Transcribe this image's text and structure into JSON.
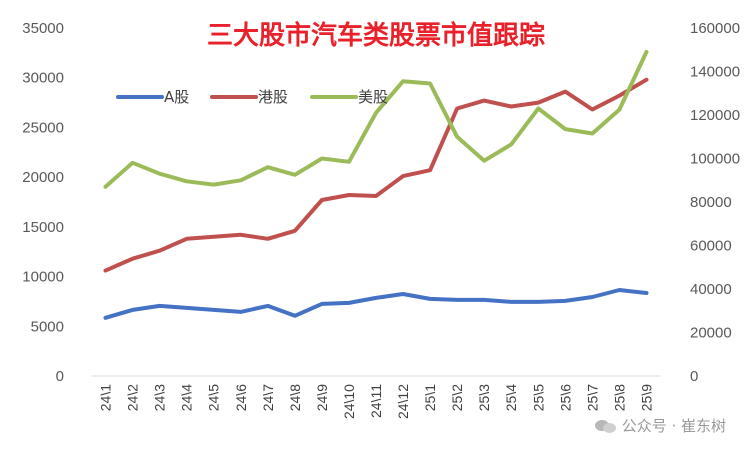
{
  "chart_data": {
    "type": "line",
    "title": "三大股市汽车类股票市值跟踪",
    "categories": [
      "24\\1",
      "24\\2",
      "24\\3",
      "24\\4",
      "24\\5",
      "24\\6",
      "24\\7",
      "24\\8",
      "24\\9",
      "24\\10",
      "24\\11",
      "24\\12",
      "25\\1",
      "25\\2",
      "25\\3",
      "25\\4",
      "25\\5",
      "25\\6",
      "25\\7",
      "25\\8",
      "25\\9"
    ],
    "y_left": {
      "min": 0,
      "max": 35000,
      "step": 5000,
      "ticks": [
        "0",
        "5000",
        "10000",
        "15000",
        "20000",
        "25000",
        "30000",
        "35000"
      ]
    },
    "y_right": {
      "min": 0,
      "max": 160000,
      "step": 20000,
      "ticks": [
        "0",
        "20000",
        "40000",
        "60000",
        "80000",
        "100000",
        "120000",
        "140000",
        "160000"
      ]
    },
    "series": [
      {
        "name": "A股",
        "color": "#4472c4",
        "axis": "left",
        "values": [
          5850,
          6650,
          7050,
          6850,
          6650,
          6450,
          7050,
          6050,
          7250,
          7350,
          7850,
          8250,
          7750,
          7650,
          7650,
          7450,
          7450,
          7550,
          7950,
          8650,
          8350
        ]
      },
      {
        "name": "港股",
        "color": "#c0504d",
        "axis": "left",
        "values": [
          10600,
          11800,
          12600,
          13800,
          14000,
          14200,
          13800,
          14600,
          17700,
          18200,
          18100,
          20100,
          20700,
          26900,
          27700,
          27100,
          27500,
          28600,
          26800,
          28200,
          29800
        ]
      },
      {
        "name": "美股",
        "color": "#9bbb59",
        "axis": "right",
        "values": [
          87000,
          98000,
          93000,
          89500,
          88000,
          90000,
          96000,
          92500,
          100000,
          98500,
          121000,
          135500,
          134500,
          110000,
          99000,
          106500,
          123000,
          113500,
          111500,
          122500,
          149000
        ]
      }
    ],
    "legend": {
      "placement": "top-left",
      "entries": [
        "A股",
        "港股",
        "美股"
      ]
    },
    "title_color": "#e8212a",
    "grid": false
  },
  "watermark": {
    "text": "公众号 · 崔东树"
  }
}
